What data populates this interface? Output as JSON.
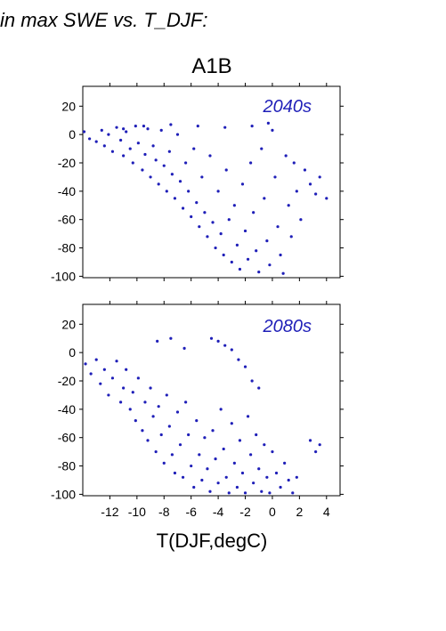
{
  "page_title": "in max SWE vs. T_DJF:",
  "colors": {
    "points": "#1f1fb8",
    "period_label": "#1f1fb8",
    "axis": "#000000"
  },
  "chart_data": [
    {
      "type": "scatter",
      "title": "A1B",
      "annotation": "2040s",
      "xlabel": "",
      "ylabel": "",
      "xlim": [
        -14,
        5
      ],
      "ylim": [
        -101,
        34
      ],
      "y_ticks": [
        20,
        0,
        -20,
        -40,
        -60,
        -80,
        -100
      ],
      "x_ticks": [
        -12,
        -10,
        -8,
        -6,
        -4,
        -2,
        0,
        2,
        4
      ],
      "show_x_tick_labels": false,
      "grid": false,
      "series": [
        {
          "points": [
            [
              -13.9,
              2
            ],
            [
              -13.5,
              -3
            ],
            [
              -13,
              -5
            ],
            [
              -12.6,
              3
            ],
            [
              -12.4,
              -8
            ],
            [
              -12.1,
              0
            ],
            [
              -11.8,
              -12
            ],
            [
              -11.5,
              5
            ],
            [
              -11.2,
              -4
            ],
            [
              -11,
              -15
            ],
            [
              -10.8,
              2
            ],
            [
              -10.5,
              -10
            ],
            [
              -10.3,
              -20
            ],
            [
              -10.1,
              6
            ],
            [
              -9.9,
              -6
            ],
            [
              -9.6,
              -25
            ],
            [
              -9.4,
              -14
            ],
            [
              -9.2,
              4
            ],
            [
              -9,
              -30
            ],
            [
              -8.8,
              -8
            ],
            [
              -8.6,
              -18
            ],
            [
              -8.4,
              -35
            ],
            [
              -8.2,
              3
            ],
            [
              -8,
              -22
            ],
            [
              -7.8,
              -40
            ],
            [
              -7.6,
              -12
            ],
            [
              -7.4,
              -28
            ],
            [
              -7.2,
              -45
            ],
            [
              -7,
              0
            ],
            [
              -6.8,
              -33
            ],
            [
              -6.6,
              -52
            ],
            [
              -6.4,
              -20
            ],
            [
              -6.2,
              -40
            ],
            [
              -6,
              -58
            ],
            [
              -5.8,
              -10
            ],
            [
              -5.6,
              -48
            ],
            [
              -5.4,
              -65
            ],
            [
              -5.2,
              -30
            ],
            [
              -5,
              -55
            ],
            [
              -4.8,
              -72
            ],
            [
              -4.6,
              -15
            ],
            [
              -4.4,
              -62
            ],
            [
              -4.2,
              -80
            ],
            [
              -4,
              -40
            ],
            [
              -3.8,
              -70
            ],
            [
              -3.6,
              -85
            ],
            [
              -3.4,
              -25
            ],
            [
              -3.2,
              -60
            ],
            [
              -3,
              -90
            ],
            [
              -2.8,
              -50
            ],
            [
              -2.6,
              -78
            ],
            [
              -2.4,
              -95
            ],
            [
              -2.2,
              -35
            ],
            [
              -2,
              -68
            ],
            [
              -1.8,
              -88
            ],
            [
              -1.6,
              -20
            ],
            [
              -1.4,
              -55
            ],
            [
              -1.2,
              -82
            ],
            [
              -1,
              -97
            ],
            [
              -0.8,
              -10
            ],
            [
              -0.6,
              -45
            ],
            [
              -0.4,
              -75
            ],
            [
              -0.2,
              -92
            ],
            [
              0,
              3
            ],
            [
              0.2,
              -30
            ],
            [
              0.4,
              -65
            ],
            [
              0.6,
              -85
            ],
            [
              0.8,
              -98
            ],
            [
              1,
              -15
            ],
            [
              1.2,
              -50
            ],
            [
              1.4,
              -72
            ],
            [
              1.6,
              -20
            ],
            [
              1.8,
              -40
            ],
            [
              2.1,
              -60
            ],
            [
              2.4,
              -25
            ],
            [
              2.8,
              -35
            ],
            [
              3.2,
              -42
            ],
            [
              3.5,
              -30
            ],
            [
              4,
              -45
            ],
            [
              -0.3,
              8
            ],
            [
              -1.5,
              6
            ],
            [
              -3.5,
              5
            ],
            [
              -5.5,
              6
            ],
            [
              -7.5,
              7
            ],
            [
              -9.5,
              6
            ],
            [
              -11,
              4
            ]
          ]
        }
      ]
    },
    {
      "type": "scatter",
      "title": "",
      "annotation": "2080s",
      "xlabel": "T(DJF,degC)",
      "ylabel": "",
      "xlim": [
        -14,
        5
      ],
      "ylim": [
        -101,
        34
      ],
      "y_ticks": [
        20,
        0,
        -20,
        -40,
        -60,
        -80,
        -100
      ],
      "x_ticks": [
        -12,
        -10,
        -8,
        -6,
        -4,
        -2,
        0,
        2,
        4
      ],
      "x_tick_labels": [
        "-12",
        "-10",
        "-8",
        "-6",
        "-4",
        "-2",
        "0",
        "2",
        "4"
      ],
      "show_x_tick_labels": true,
      "grid": false,
      "series": [
        {
          "points": [
            [
              -13.8,
              -8
            ],
            [
              -13.4,
              -15
            ],
            [
              -13,
              -5
            ],
            [
              -12.7,
              -22
            ],
            [
              -12.4,
              -12
            ],
            [
              -12.1,
              -30
            ],
            [
              -11.8,
              -18
            ],
            [
              -11.5,
              -6
            ],
            [
              -11.2,
              -35
            ],
            [
              -11,
              -25
            ],
            [
              -10.8,
              -12
            ],
            [
              -10.5,
              -40
            ],
            [
              -10.3,
              -28
            ],
            [
              -10.1,
              -48
            ],
            [
              -9.9,
              -18
            ],
            [
              -9.6,
              -55
            ],
            [
              -9.4,
              -35
            ],
            [
              -9.2,
              -62
            ],
            [
              -9,
              -25
            ],
            [
              -8.8,
              -45
            ],
            [
              -8.6,
              -70
            ],
            [
              -8.4,
              -38
            ],
            [
              -8.2,
              -58
            ],
            [
              -8,
              -78
            ],
            [
              -7.8,
              -30
            ],
            [
              -7.6,
              -52
            ],
            [
              -7.4,
              -72
            ],
            [
              -7.2,
              -85
            ],
            [
              -7,
              -42
            ],
            [
              -6.8,
              -65
            ],
            [
              -6.6,
              -88
            ],
            [
              -6.4,
              -35
            ],
            [
              -6.2,
              -58
            ],
            [
              -6,
              -80
            ],
            [
              -5.8,
              -95
            ],
            [
              -5.6,
              -48
            ],
            [
              -5.4,
              -72
            ],
            [
              -5.2,
              -90
            ],
            [
              -5,
              -60
            ],
            [
              -4.8,
              -82
            ],
            [
              -4.6,
              -98
            ],
            [
              -4.4,
              -55
            ],
            [
              -4.2,
              -75
            ],
            [
              -4,
              -92
            ],
            [
              -3.8,
              -40
            ],
            [
              -3.6,
              -68
            ],
            [
              -3.4,
              -88
            ],
            [
              -3.2,
              -99
            ],
            [
              -3,
              -50
            ],
            [
              -2.8,
              -78
            ],
            [
              -2.6,
              -95
            ],
            [
              -2.4,
              -62
            ],
            [
              -2.2,
              -85
            ],
            [
              -2,
              -99
            ],
            [
              -1.8,
              -45
            ],
            [
              -1.6,
              -72
            ],
            [
              -1.4,
              -92
            ],
            [
              -1.2,
              -58
            ],
            [
              -1,
              -82
            ],
            [
              -0.8,
              -98
            ],
            [
              -0.6,
              -65
            ],
            [
              -0.4,
              -88
            ],
            [
              -0.2,
              -99
            ],
            [
              0,
              -70
            ],
            [
              0.3,
              -85
            ],
            [
              0.6,
              -95
            ],
            [
              0.9,
              -78
            ],
            [
              1.2,
              -90
            ],
            [
              1.5,
              -99
            ],
            [
              1.8,
              -88
            ],
            [
              -4.5,
              10
            ],
            [
              -4,
              8
            ],
            [
              -3.5,
              5
            ],
            [
              -3,
              2
            ],
            [
              -2.5,
              -5
            ],
            [
              -2,
              -10
            ],
            [
              -1.5,
              -20
            ],
            [
              -1,
              -25
            ],
            [
              -7.5,
              10
            ],
            [
              -8.5,
              8
            ],
            [
              -6.5,
              3
            ],
            [
              3.5,
              -65
            ],
            [
              3.2,
              -70
            ],
            [
              2.8,
              -62
            ]
          ]
        }
      ]
    }
  ]
}
